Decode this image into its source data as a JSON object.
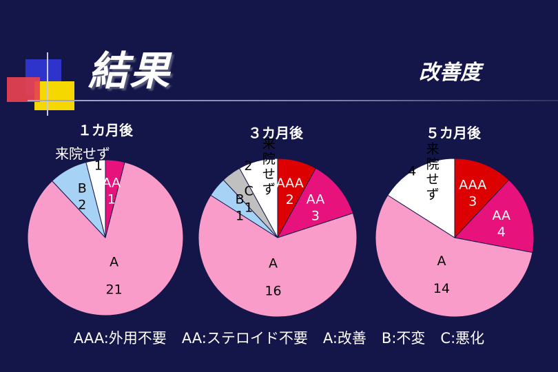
{
  "header": {
    "title": "結果",
    "subtitle": "改善度"
  },
  "legend": {
    "items": [
      "AAA:外用不要",
      "AA:ステロイド不要",
      "A:改善",
      "B:不変",
      "C:悪化"
    ]
  },
  "colors": {
    "background": "#14164a",
    "AAA": "#dd0000",
    "AA": "#e8127c",
    "A": "#f99cc9",
    "B": "#a6d2f5",
    "C": "#c0c0c0",
    "not_visited": "#ffffff"
  },
  "chart_data": [
    {
      "type": "pie",
      "title": "１カ月後",
      "outside_label": "来院せず",
      "slices": [
        {
          "name": "AA",
          "value": 1,
          "color": "#e8127c"
        },
        {
          "name": "A",
          "value": 21,
          "color": "#f99cc9"
        },
        {
          "name": "B",
          "value": 2,
          "color": "#a6d2f5"
        },
        {
          "name": "来院せず",
          "value": 1,
          "color": "#ffffff"
        }
      ]
    },
    {
      "type": "pie",
      "title": "３カ月後",
      "slices": [
        {
          "name": "AAA",
          "value": 2,
          "color": "#dd0000"
        },
        {
          "name": "AA",
          "value": 3,
          "color": "#e8127c"
        },
        {
          "name": "A",
          "value": 16,
          "color": "#f99cc9"
        },
        {
          "name": "B",
          "value": 1,
          "color": "#a6d2f5"
        },
        {
          "name": "C",
          "value": 1,
          "color": "#c0c0c0"
        },
        {
          "name": "来院せず",
          "value": 2,
          "color": "#ffffff"
        }
      ]
    },
    {
      "type": "pie",
      "title": "５カ月後",
      "slices": [
        {
          "name": "AAA",
          "value": 3,
          "color": "#dd0000"
        },
        {
          "name": "AA",
          "value": 4,
          "color": "#e8127c"
        },
        {
          "name": "A",
          "value": 14,
          "color": "#f99cc9"
        },
        {
          "name": "来院せず",
          "value": 4,
          "color": "#ffffff"
        }
      ]
    }
  ]
}
